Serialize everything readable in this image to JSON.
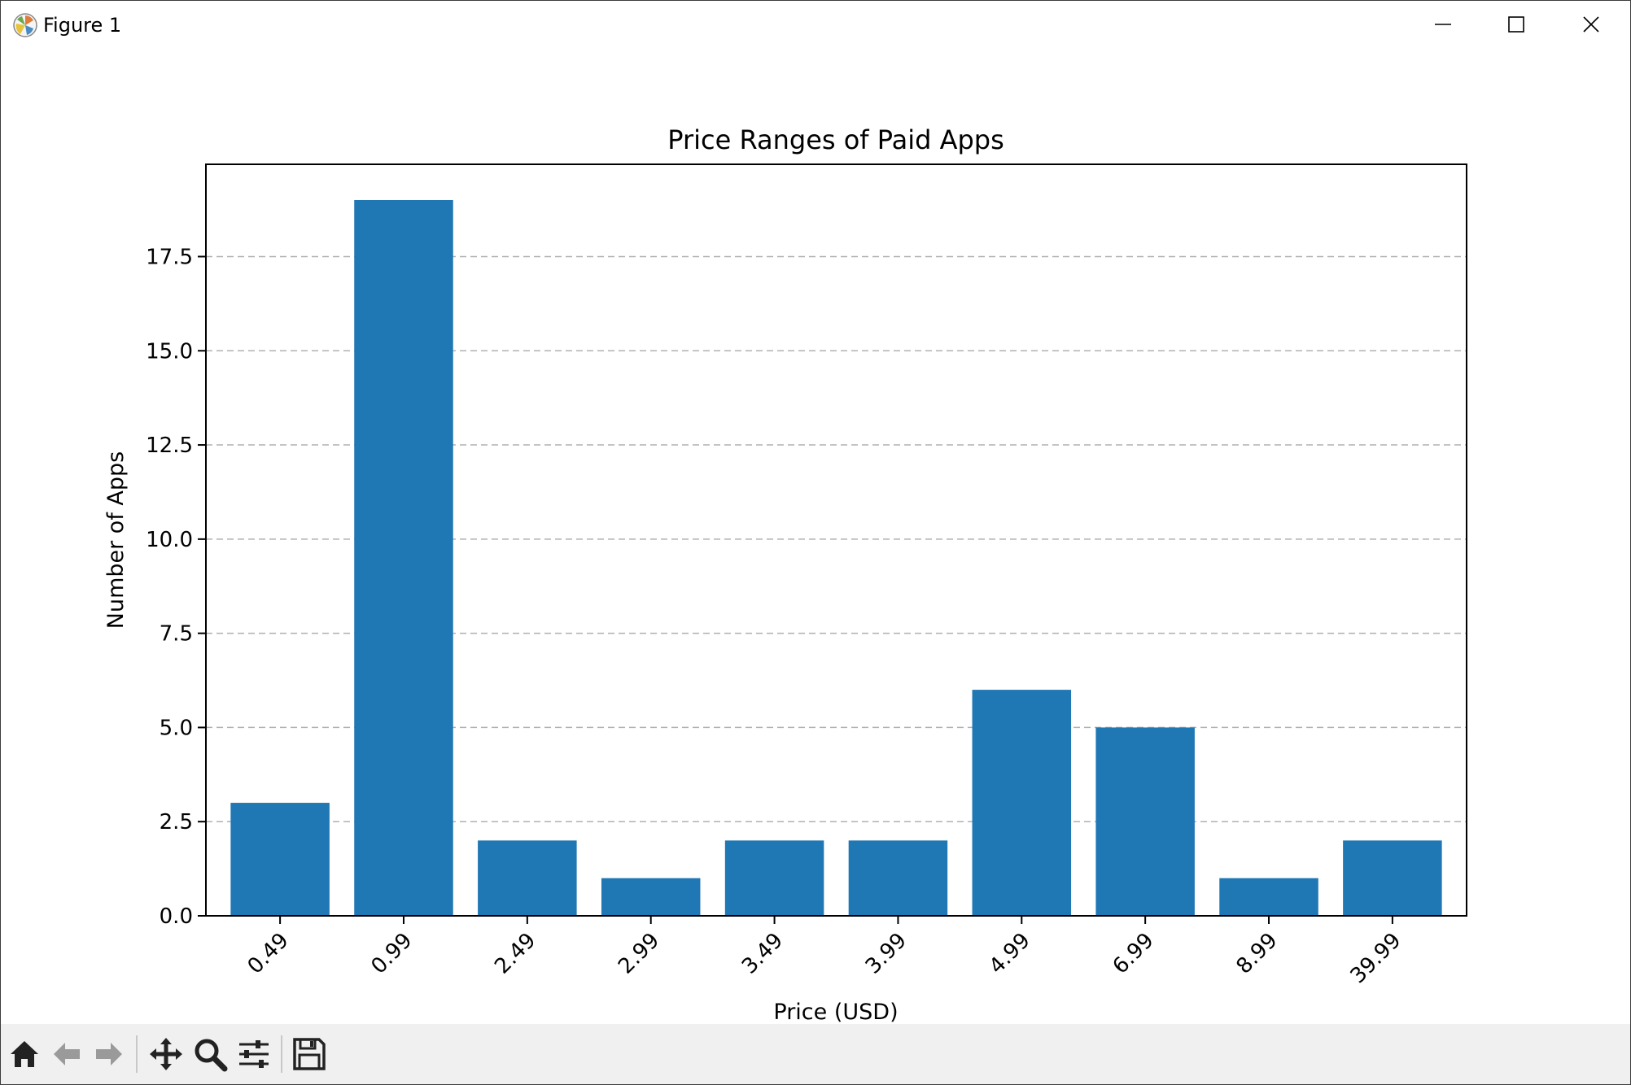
{
  "window": {
    "title": "Figure 1",
    "app_icon": "matplotlib-icon",
    "controls": [
      "minimize-icon",
      "maximize-icon",
      "close-icon"
    ]
  },
  "toolbar": {
    "buttons": [
      "home-icon",
      "back-arrow-icon",
      "forward-arrow-icon",
      "pan-icon",
      "zoom-icon",
      "configure-subplots-icon",
      "save-icon"
    ]
  },
  "chart_data": {
    "type": "bar",
    "title": "Price Ranges of Paid Apps",
    "xlabel": "Price (USD)",
    "ylabel": "Number of Apps",
    "categories": [
      "0.49",
      "0.99",
      "2.49",
      "2.99",
      "3.49",
      "3.99",
      "4.99",
      "6.99",
      "8.99",
      "39.99"
    ],
    "values": [
      3,
      19,
      2,
      1,
      2,
      2,
      6,
      5,
      1,
      2
    ],
    "ylim": [
      0,
      19.95
    ],
    "yticks": [
      "0.0",
      "2.5",
      "5.0",
      "7.5",
      "10.0",
      "12.5",
      "15.0",
      "17.5"
    ],
    "grid": "y-dashed",
    "bar_color": "#1f77b4",
    "xtick_rotation": 45
  }
}
